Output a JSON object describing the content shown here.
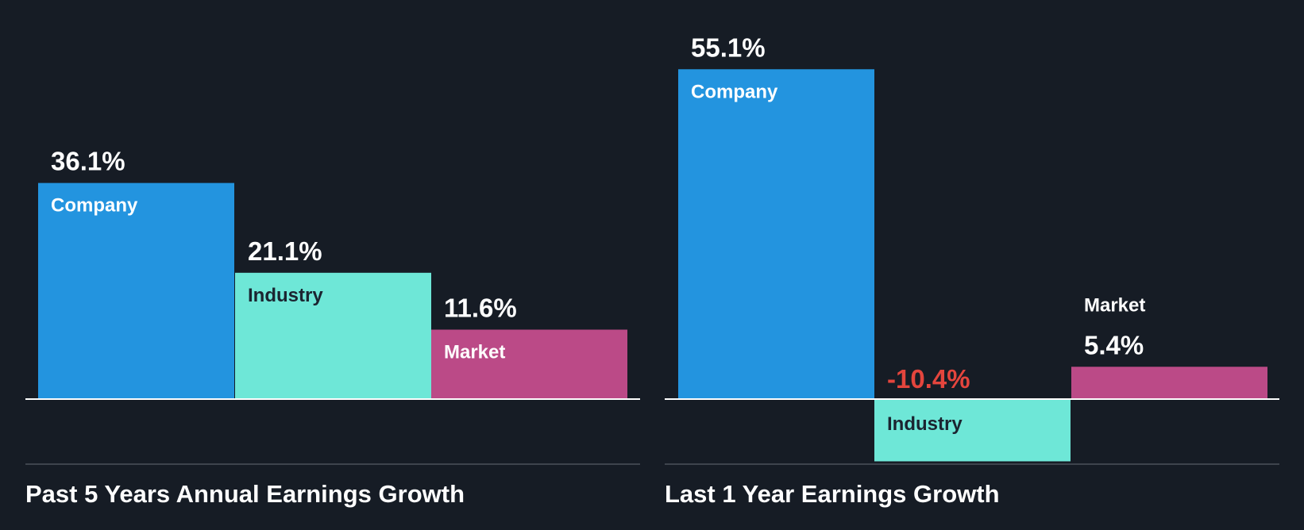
{
  "colors": {
    "background": "#161c25",
    "company": "#2394df",
    "industry": "#6ee7d7",
    "market": "#bb4a87",
    "label_light": "#ffffff",
    "label_dark": "#1b2430",
    "negative": "#e4453d",
    "axis": "#ffffff",
    "divider": "#3e444d"
  },
  "chart_data": [
    {
      "type": "bar",
      "title": "Past 5 Years Annual Earnings Growth",
      "categories": [
        "Company",
        "Industry",
        "Market"
      ],
      "values": [
        36.1,
        21.1,
        11.6
      ],
      "value_labels": [
        "36.1%",
        "21.1%",
        "11.6%"
      ],
      "unit": "%",
      "ylim": [
        -10.9,
        55.1
      ]
    },
    {
      "type": "bar",
      "title": "Last 1 Year Earnings Growth",
      "categories": [
        "Company",
        "Industry",
        "Market"
      ],
      "values": [
        55.1,
        -10.4,
        5.4
      ],
      "value_labels": [
        "55.1%",
        "-10.4%",
        "5.4%"
      ],
      "unit": "%",
      "ylim": [
        -10.9,
        55.1
      ]
    }
  ]
}
